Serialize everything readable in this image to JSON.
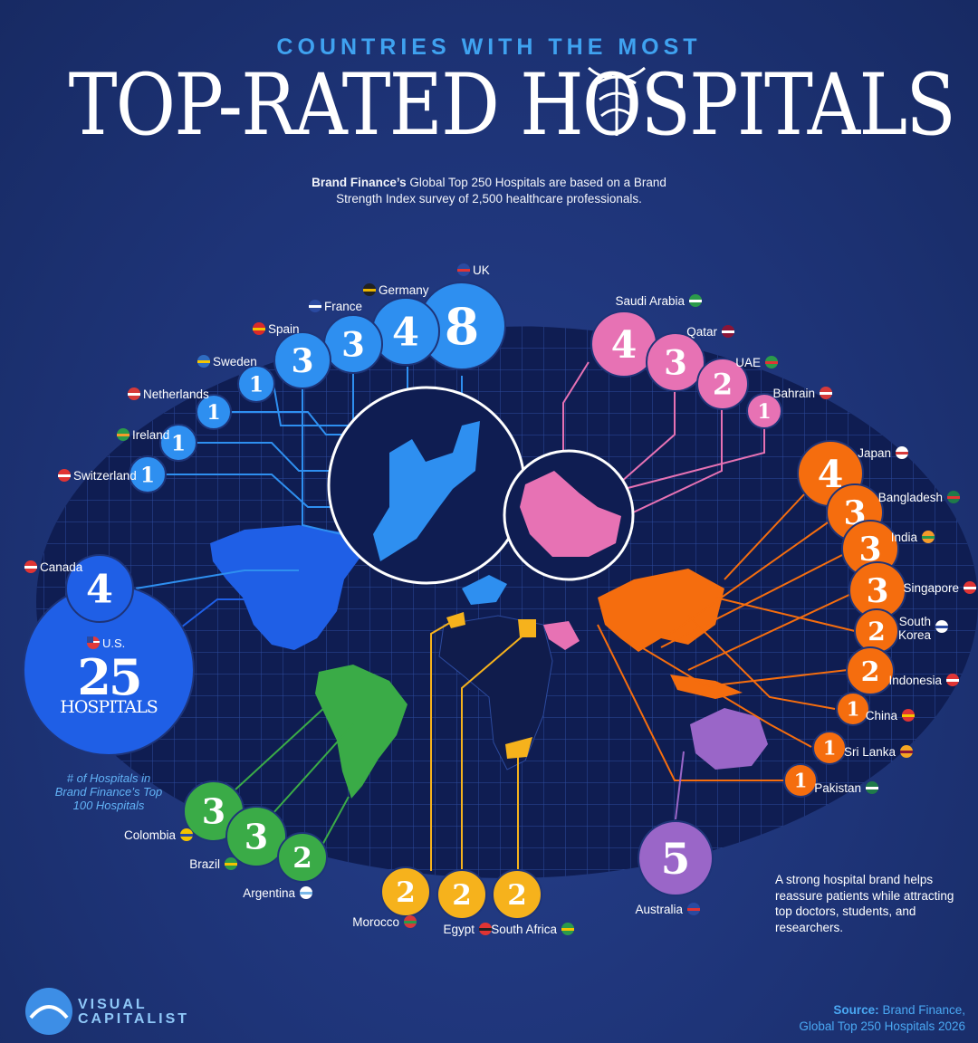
{
  "header": {
    "kicker": "COUNTRIES WITH THE MOST",
    "title": "TOP-RATED HOSPITALS",
    "intro_bold": "Brand Finance’s",
    "intro_rest": "Global Top 250 Hospitals are based on a Brand Strength Index survey of 2,500 healthcare professionals."
  },
  "legend_note": "# of Hospitals in Brand Finance’s Top 100 Hospitals",
  "us_callout": {
    "label": "U.S.",
    "value": "25",
    "unit": "HOSPITALS"
  },
  "side_note": "A strong hospital brand helps reassure patients while attracting top doctors, students, and researchers.",
  "footer": {
    "brand_line1": "VISUAL",
    "brand_line2": "CAPITALIST",
    "source_label": "Source:",
    "source_line1": "Brand Finance,",
    "source_line2": "Global Top 250 Hospitals 2026"
  },
  "colors": {
    "background": "#1e3478",
    "north_america": "#1f5fe6",
    "europe": "#2e8ff0",
    "middle_east": "#e772b4",
    "asia": "#f56d0e",
    "latin_america": "#3aab47",
    "africa": "#f6b21c",
    "oceania": "#9a66c8"
  },
  "chart_data": {
    "type": "bubble-map",
    "title": "TOP-RATED HOSPITALS",
    "unit": "# of Hospitals in Brand Finance’s Top 100 Hospitals",
    "series": [
      {
        "region": "north_america",
        "points": [
          {
            "country": "U.S.",
            "value": 25
          },
          {
            "country": "Canada",
            "value": 4
          }
        ]
      },
      {
        "region": "europe",
        "points": [
          {
            "country": "UK",
            "value": 8
          },
          {
            "country": "Germany",
            "value": 4
          },
          {
            "country": "France",
            "value": 3
          },
          {
            "country": "Spain",
            "value": 3
          },
          {
            "country": "Sweden",
            "value": 1
          },
          {
            "country": "Netherlands",
            "value": 1
          },
          {
            "country": "Ireland",
            "value": 1
          },
          {
            "country": "Switzerland",
            "value": 1
          }
        ]
      },
      {
        "region": "middle_east",
        "points": [
          {
            "country": "Saudi Arabia",
            "value": 4
          },
          {
            "country": "Qatar",
            "value": 3
          },
          {
            "country": "UAE",
            "value": 2
          },
          {
            "country": "Bahrain",
            "value": 1
          }
        ]
      },
      {
        "region": "asia",
        "points": [
          {
            "country": "Japan",
            "value": 4
          },
          {
            "country": "Bangladesh",
            "value": 3
          },
          {
            "country": "India",
            "value": 3
          },
          {
            "country": "Singapore",
            "value": 3
          },
          {
            "country": "South Korea",
            "value": 2
          },
          {
            "country": "Indonesia",
            "value": 2
          },
          {
            "country": "China",
            "value": 1
          },
          {
            "country": "Sri Lanka",
            "value": 1
          },
          {
            "country": "Pakistan",
            "value": 1
          }
        ]
      },
      {
        "region": "latin_america",
        "points": [
          {
            "country": "Colombia",
            "value": 3
          },
          {
            "country": "Brazil",
            "value": 3
          },
          {
            "country": "Argentina",
            "value": 2
          }
        ]
      },
      {
        "region": "africa",
        "points": [
          {
            "country": "Morocco",
            "value": 2
          },
          {
            "country": "Egypt",
            "value": 2
          },
          {
            "country": "South Africa",
            "value": 2
          }
        ]
      },
      {
        "region": "oceania",
        "points": [
          {
            "country": "Australia",
            "value": 5
          }
        ]
      }
    ]
  }
}
